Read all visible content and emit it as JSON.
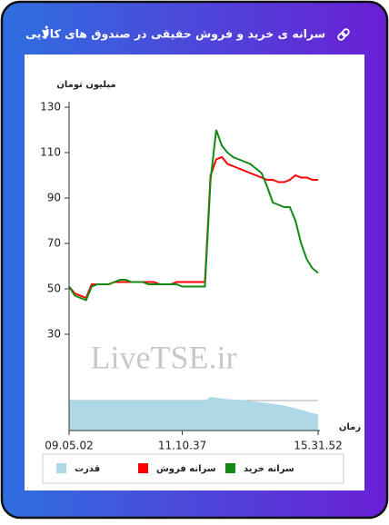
{
  "chart_data": {
    "type": "line",
    "title": "سرانه ی خرید و فروش حقیقی در صندوق های کالایی",
    "y_label": "میلیون تومان",
    "x_label": "زمان",
    "watermark": "LiveTSE.ir",
    "categories": [
      "09.05.02",
      null,
      null,
      null,
      null,
      null,
      null,
      null,
      null,
      null,
      null,
      null,
      null,
      null,
      null,
      null,
      null,
      null,
      null,
      null,
      "11.10.37",
      null,
      null,
      null,
      null,
      null,
      null,
      null,
      null,
      null,
      null,
      null,
      null,
      null,
      null,
      null,
      null,
      null,
      null,
      null,
      null,
      null,
      null,
      null,
      "15.31.52"
    ],
    "ylim": [
      -12.4,
      130
    ],
    "yticks": [
      30,
      50,
      70,
      90,
      110,
      130
    ],
    "y2lim": [
      0,
      100
    ],
    "series": [
      {
        "name": "سرانه خرید",
        "color": "#138a13",
        "values": [
          51,
          47,
          46,
          45,
          51,
          52,
          52,
          52,
          53,
          54,
          54,
          53,
          53,
          53,
          52,
          52,
          52,
          52,
          52,
          52,
          51,
          51,
          51,
          51,
          51,
          98,
          120,
          113,
          110,
          108,
          107,
          106,
          105,
          103,
          101,
          95,
          88,
          87,
          86,
          86,
          80,
          70,
          63,
          59,
          57
        ]
      },
      {
        "name": "سرانه فروش",
        "color": "#ff0000",
        "values": [
          51,
          48,
          47,
          46,
          52,
          52,
          52,
          52,
          53,
          53,
          53,
          53,
          53,
          53,
          53,
          53,
          52,
          52,
          52,
          53,
          53,
          53,
          53,
          53,
          53,
          100,
          107,
          108,
          105,
          104,
          103,
          102,
          101,
          100,
          99,
          98,
          98,
          97,
          97,
          98,
          100,
          99,
          99,
          98,
          98
        ]
      },
      {
        "name": "قدرت",
        "color": "#add8e6",
        "axis": "y2",
        "area": true,
        "values": [
          9.3,
          9.3,
          9.3,
          9.3,
          9.3,
          9.3,
          9.3,
          9.3,
          9.3,
          9.3,
          9.3,
          9.3,
          9.3,
          9.3,
          9.3,
          9.3,
          9.3,
          9.3,
          9.3,
          9.3,
          9.3,
          9.3,
          9.3,
          9.3,
          9.3,
          10.4,
          10.1,
          9.9,
          9.7,
          9.6,
          9.5,
          9.3,
          9.1,
          8.9,
          8.7,
          8.5,
          8.2,
          8,
          7.7,
          7.3,
          6.9,
          6.4,
          5.9,
          5.4,
          5
        ]
      }
    ]
  }
}
